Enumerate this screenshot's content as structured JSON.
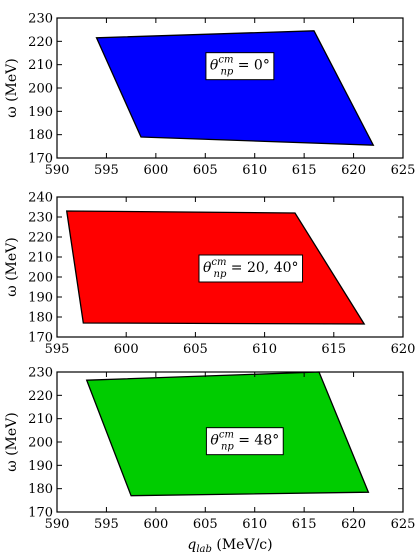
{
  "chart_data": [
    {
      "type": "area",
      "xlim": [
        590,
        625
      ],
      "ylim": [
        170,
        230
      ],
      "xticks": [
        "590",
        "595",
        "600",
        "605",
        "610",
        "615",
        "620",
        "625"
      ],
      "yticks": [
        "170",
        "180",
        "190",
        "200",
        "210",
        "220",
        "230"
      ],
      "ylabel": "ω (MeV)",
      "xlabel": "",
      "fill_color": "#0000ff",
      "polygon": [
        [
          594,
          221.5
        ],
        [
          616,
          224.5
        ],
        [
          622,
          175.5
        ],
        [
          598.5,
          179
        ]
      ],
      "annotation": {
        "base": "θ",
        "sup": "cm",
        "sub": "np",
        "rest": " = 0°"
      },
      "annotation_at": [
        608.5,
        210
      ]
    },
    {
      "type": "area",
      "xlim": [
        595,
        620
      ],
      "ylim": [
        170,
        240
      ],
      "xticks": [
        "595",
        "600",
        "605",
        "610",
        "615",
        "620"
      ],
      "yticks": [
        "170",
        "180",
        "190",
        "200",
        "210",
        "220",
        "230",
        "240"
      ],
      "ylabel": "ω (MeV)",
      "xlabel": "",
      "fill_color": "#ff0000",
      "polygon": [
        [
          595.7,
          233
        ],
        [
          612.2,
          232
        ],
        [
          617.2,
          176.5
        ],
        [
          596.9,
          177
        ]
      ],
      "annotation": {
        "base": "θ",
        "sup": "cm",
        "sub": "np",
        "rest": " = 20, 40°"
      },
      "annotation_at": [
        609,
        205
      ]
    },
    {
      "type": "area",
      "xlim": [
        590,
        625
      ],
      "ylim": [
        170,
        230
      ],
      "xticks": [
        "590",
        "595",
        "600",
        "605",
        "610",
        "615",
        "620",
        "625"
      ],
      "yticks": [
        "170",
        "180",
        "190",
        "200",
        "210",
        "220",
        "230"
      ],
      "ylabel": "ω (MeV)",
      "xlabel": "q_lab (MeV/c)",
      "fill_color": "#00cc00",
      "polygon": [
        [
          593,
          226.5
        ],
        [
          616.5,
          230
        ],
        [
          621.5,
          178.5
        ],
        [
          597.5,
          177
        ]
      ],
      "annotation": {
        "base": "θ",
        "sup": "cm",
        "sub": "np",
        "rest": " = 48°"
      },
      "annotation_at": [
        609,
        201
      ]
    }
  ],
  "xaxis_title": {
    "base": "q",
    "sub": "lab",
    "rest": " (MeV/c)"
  }
}
